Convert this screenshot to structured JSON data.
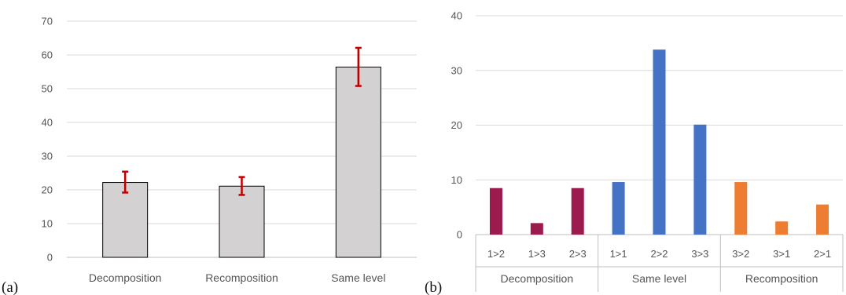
{
  "panel_labels": {
    "a": "(a)",
    "b": "(b)"
  },
  "chart_data": [
    {
      "type": "bar",
      "title": "",
      "xlabel": "",
      "ylabel": "",
      "categories": [
        "Decomposition",
        "Recomposition",
        "Same level"
      ],
      "values": [
        22.2,
        21.1,
        56.4
      ],
      "error_low": [
        19.2,
        18.5,
        50.8
      ],
      "error_high": [
        25.4,
        23.8,
        62.1
      ],
      "ylim": [
        0,
        70
      ],
      "yticks": [
        0,
        10,
        20,
        30,
        40,
        50,
        60,
        70
      ],
      "grid": true,
      "colors": {
        "bar": "#d3d1d1",
        "bar_edge": "#000000",
        "error": "#c00000"
      }
    },
    {
      "type": "bar",
      "title": "",
      "xlabel": "",
      "ylabel": "",
      "ylim": [
        0,
        40
      ],
      "yticks": [
        0,
        10,
        20,
        30,
        40
      ],
      "grid": true,
      "groups": [
        {
          "name": "Decomposition",
          "color": "#9b1b4f",
          "categories": [
            "1>2",
            "1>3",
            "2>3"
          ],
          "values": [
            8.5,
            2.1,
            8.5
          ]
        },
        {
          "name": "Same level",
          "color": "#4472c4",
          "categories": [
            "1>1",
            "2>2",
            "3>3"
          ],
          "values": [
            9.6,
            33.8,
            20.1
          ]
        },
        {
          "name": "Recomposition",
          "color": "#ed7d31",
          "categories": [
            "3>2",
            "3>1",
            "2>1"
          ],
          "values": [
            9.6,
            2.4,
            5.5
          ]
        }
      ]
    }
  ]
}
